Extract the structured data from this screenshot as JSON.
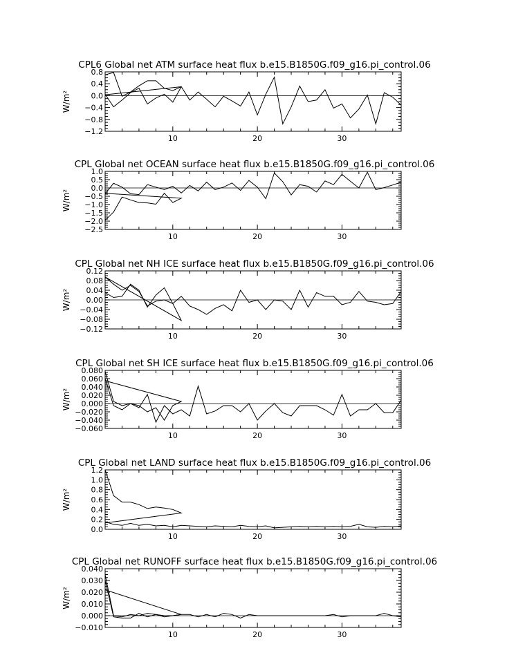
{
  "chart_data": [
    {
      "type": "line",
      "title": "CPL6 Global net ATM surface heat flux b.e15.B1850G.f09_g16.pi_control.06",
      "ylabel": "W/m²",
      "ylim": [
        -1.2,
        0.8
      ],
      "yticks": [
        0.8,
        0.4,
        0.0,
        -0.4,
        -0.8,
        -1.2
      ],
      "ytick_labels": [
        "0.8",
        "0.4",
        "0.0",
        "−0.4",
        "−0.8",
        "−1.2"
      ],
      "xlim": [
        2,
        37
      ],
      "xticks": [
        10,
        20,
        30
      ],
      "xtick_labels": [
        "10",
        "20",
        "30"
      ],
      "series": [
        {
          "x": [
            2,
            3,
            4,
            5,
            6,
            7,
            8,
            9,
            10,
            11,
            2
          ],
          "y": [
            0.7,
            0.78,
            -0.02,
            0.12,
            0.33,
            0.5,
            0.5,
            0.25,
            0.17,
            0.3,
            0.03
          ]
        },
        {
          "x": [
            2,
            3,
            4,
            5,
            6,
            7,
            8,
            9,
            10,
            11,
            12,
            13,
            14,
            15,
            16,
            17,
            18,
            19,
            20,
            21,
            22,
            23,
            24,
            25,
            26,
            27,
            28,
            29,
            30,
            31,
            32,
            33,
            34,
            35,
            36,
            37
          ],
          "y": [
            0.05,
            -0.38,
            -0.15,
            0.1,
            0.25,
            -0.28,
            -0.08,
            0.05,
            -0.22,
            0.3,
            -0.15,
            0.12,
            -0.12,
            -0.38,
            -0.02,
            -0.18,
            -0.35,
            0.12,
            -0.65,
            0.05,
            0.62,
            -0.95,
            -0.38,
            0.32,
            -0.2,
            -0.15,
            0.2,
            -0.42,
            -0.28,
            -0.75,
            -0.45,
            0.02,
            -0.95,
            0.1,
            -0.05,
            -0.32
          ]
        }
      ],
      "hline": 0
    },
    {
      "type": "line",
      "title": "CPL Global net OCEAN surface heat flux b.e15.B1850G.f09_g16.pi_control.06",
      "ylabel": "W/m²",
      "ylim": [
        -2.5,
        1.0
      ],
      "yticks": [
        1.0,
        0.5,
        0.0,
        -0.5,
        -1.0,
        -1.5,
        -2.0,
        -2.5
      ],
      "ytick_labels": [
        "1.0",
        "0.5",
        "0.0",
        "−0.5",
        "−1.0",
        "−1.5",
        "−2.0",
        "−2.5"
      ],
      "xlim": [
        2,
        37
      ],
      "xticks": [
        10,
        20,
        30
      ],
      "xtick_labels": [
        "10",
        "20",
        "30"
      ],
      "series": [
        {
          "x": [
            2,
            3,
            4,
            5,
            6,
            7,
            8,
            9,
            10,
            11,
            2
          ],
          "y": [
            -1.95,
            -1.45,
            -0.55,
            -0.72,
            -0.88,
            -0.9,
            -0.98,
            -0.32,
            -0.88,
            -0.62,
            -0.32
          ]
        },
        {
          "x": [
            2,
            3,
            4,
            5,
            6,
            7,
            8,
            9,
            10,
            11,
            12,
            13,
            14,
            15,
            16,
            17,
            18,
            19,
            20,
            21,
            22,
            23,
            24,
            25,
            26,
            27,
            28,
            29,
            30,
            31,
            32,
            33,
            34,
            35,
            36,
            37
          ],
          "y": [
            -0.35,
            0.28,
            0.05,
            -0.35,
            -0.4,
            0.2,
            0.05,
            -0.1,
            0.1,
            -0.3,
            0.15,
            -0.18,
            0.35,
            -0.1,
            0.05,
            0.3,
            -0.15,
            0.45,
            0.05,
            -0.65,
            0.9,
            0.38,
            -0.42,
            0.2,
            0.1,
            -0.25,
            0.42,
            0.2,
            0.82,
            0.4,
            0.0,
            0.95,
            -0.1,
            0.02,
            0.18,
            0.35
          ]
        }
      ],
      "hline": 0
    },
    {
      "type": "line",
      "title": "CPL Global net NH ICE surface heat flux b.e15.B1850G.f09_g16.pi_control.06",
      "ylabel": "W/m²",
      "ylim": [
        -0.12,
        0.12
      ],
      "yticks": [
        0.12,
        0.08,
        0.04,
        0.0,
        -0.04,
        -0.08,
        -0.12
      ],
      "ytick_labels": [
        "0.12",
        "0.08",
        "0.04",
        "0.00",
        "−0.04",
        "−0.08",
        "−0.12"
      ],
      "xlim": [
        2,
        37
      ],
      "xticks": [
        10,
        20,
        30
      ],
      "xtick_labels": [
        "10",
        "20",
        "30"
      ],
      "series": [
        {
          "x": [
            2,
            3,
            4,
            5,
            6,
            7,
            8,
            9,
            10,
            11,
            2
          ],
          "y": [
            0.095,
            0.065,
            0.04,
            0.06,
            0.035,
            -0.025,
            -0.005,
            0.0,
            -0.015,
            -0.085,
            0.095
          ]
        },
        {
          "x": [
            2,
            3,
            4,
            5,
            6,
            7,
            8,
            9,
            10,
            11,
            12,
            13,
            14,
            15,
            16,
            17,
            18,
            19,
            20,
            21,
            22,
            23,
            24,
            25,
            26,
            27,
            28,
            29,
            30,
            31,
            32,
            33,
            34,
            35,
            36,
            37
          ],
          "y": [
            0.03,
            0.01,
            0.015,
            0.065,
            0.04,
            -0.03,
            0.02,
            0.05,
            -0.015,
            0.015,
            -0.025,
            -0.04,
            -0.06,
            -0.035,
            -0.02,
            -0.045,
            0.04,
            -0.01,
            0.0,
            -0.04,
            0.0,
            -0.005,
            -0.04,
            0.04,
            -0.03,
            0.03,
            0.015,
            0.015,
            -0.02,
            -0.01,
            0.035,
            -0.005,
            -0.01,
            -0.02,
            -0.015,
            0.035
          ]
        }
      ],
      "hline": 0
    },
    {
      "type": "line",
      "title": "CPL Global net SH ICE surface heat flux b.e15.B1850G.f09_g16.pi_control.06",
      "ylabel": "W/m²",
      "ylim": [
        -0.06,
        0.08
      ],
      "yticks": [
        0.08,
        0.06,
        0.04,
        0.02,
        0.0,
        -0.02,
        -0.04,
        -0.06
      ],
      "ytick_labels": [
        "0.080",
        "0.060",
        "0.040",
        "0.020",
        "0.000",
        "−0.020",
        "−0.040",
        "−0.060"
      ],
      "xlim": [
        2,
        37
      ],
      "xticks": [
        10,
        20,
        30
      ],
      "xtick_labels": [
        "10",
        "20",
        "30"
      ],
      "series": [
        {
          "x": [
            2,
            3,
            4,
            5,
            6,
            7,
            8,
            9,
            10,
            11,
            2
          ],
          "y": [
            0.078,
            0.005,
            -0.005,
            0.0,
            -0.005,
            -0.02,
            -0.01,
            -0.04,
            -0.005,
            0.005,
            0.055
          ]
        },
        {
          "x": [
            2,
            3,
            4,
            5,
            6,
            7,
            8,
            9,
            10,
            11,
            12,
            13,
            14,
            15,
            16,
            17,
            18,
            19,
            20,
            21,
            22,
            23,
            24,
            25,
            26,
            27,
            28,
            29,
            30,
            31,
            32,
            33,
            34,
            35,
            36,
            37
          ],
          "y": [
            0.06,
            -0.005,
            -0.015,
            0.0,
            -0.01,
            0.022,
            -0.045,
            -0.005,
            -0.025,
            -0.015,
            -0.03,
            0.042,
            -0.025,
            -0.018,
            -0.005,
            -0.005,
            -0.02,
            0.0,
            -0.04,
            -0.018,
            0.0,
            -0.022,
            -0.03,
            -0.005,
            -0.005,
            -0.005,
            -0.015,
            -0.028,
            0.022,
            -0.03,
            -0.015,
            -0.015,
            0.0,
            -0.022,
            -0.022,
            0.008
          ]
        }
      ],
      "hline": 0
    },
    {
      "type": "line",
      "title": "CPL Global net LAND surface heat flux b.e15.B1850G.f09_g16.pi_control.06",
      "ylabel": "W/m²",
      "ylim": [
        0.0,
        1.2
      ],
      "yticks": [
        1.2,
        1.0,
        0.8,
        0.6,
        0.4,
        0.2,
        0.0
      ],
      "ytick_labels": [
        "1.2",
        "1.0",
        "0.8",
        "0.6",
        "0.4",
        "0.2",
        "0.0"
      ],
      "xlim": [
        2,
        37
      ],
      "xticks": [
        10,
        20,
        30
      ],
      "xtick_labels": [
        "10",
        "20",
        "30"
      ],
      "series": [
        {
          "x": [
            2,
            3,
            4,
            5,
            6,
            7,
            8,
            9,
            10,
            11,
            2
          ],
          "y": [
            1.2,
            0.68,
            0.55,
            0.55,
            0.5,
            0.42,
            0.45,
            0.43,
            0.4,
            0.33,
            0.13
          ]
        },
        {
          "x": [
            2,
            3,
            4,
            5,
            6,
            7,
            8,
            9,
            10,
            11,
            12,
            13,
            14,
            15,
            16,
            17,
            18,
            19,
            20,
            21,
            22,
            23,
            24,
            25,
            26,
            27,
            28,
            29,
            30,
            31,
            32,
            33,
            34,
            35,
            36,
            37
          ],
          "y": [
            0.15,
            0.1,
            0.08,
            0.12,
            0.08,
            0.1,
            0.07,
            0.08,
            0.05,
            0.08,
            0.07,
            0.06,
            0.05,
            0.07,
            0.06,
            0.05,
            0.08,
            0.06,
            0.05,
            0.07,
            0.03,
            0.04,
            0.05,
            0.06,
            0.05,
            0.06,
            0.05,
            0.06,
            0.05,
            0.06,
            0.1,
            0.05,
            0.04,
            0.06,
            0.05,
            0.07
          ]
        }
      ],
      "hline": null
    },
    {
      "type": "line",
      "title": "CPL Global net RUNOFF surface heat flux b.e15.B1850G.f09_g16.pi_control.06",
      "ylabel": "W/m²",
      "ylim": [
        -0.01,
        0.04
      ],
      "yticks": [
        0.04,
        0.03,
        0.02,
        0.01,
        0.0,
        -0.01
      ],
      "ytick_labels": [
        "0.040",
        "0.030",
        "0.020",
        "0.010",
        "0.000",
        "−0.010"
      ],
      "xlim": [
        2,
        37
      ],
      "xticks": [
        10,
        20,
        30
      ],
      "xtick_labels": [
        "10",
        "20",
        "30"
      ],
      "series": [
        {
          "x": [
            2,
            3,
            4,
            5,
            6,
            7,
            8,
            9,
            10,
            11,
            2
          ],
          "y": [
            0.035,
            0.0,
            -0.001,
            0.001,
            0.0,
            0.002,
            0.001,
            -0.001,
            0.0,
            0.001,
            0.022
          ]
        },
        {
          "x": [
            2,
            3,
            4,
            5,
            6,
            7,
            8,
            9,
            10,
            11,
            12,
            13,
            14,
            15,
            16,
            17,
            18,
            19,
            20,
            21,
            22,
            23,
            24,
            25,
            26,
            27,
            28,
            29,
            30,
            31,
            32,
            33,
            34,
            35,
            36,
            37
          ],
          "y": [
            0.03,
            -0.001,
            -0.002,
            -0.002,
            0.002,
            -0.001,
            0.001,
            0.0,
            0.0,
            0.001,
            0.001,
            -0.001,
            0.001,
            -0.001,
            0.002,
            0.001,
            -0.002,
            0.001,
            0.0,
            0.0,
            0.0,
            0.0,
            0.0,
            0.0,
            0.0,
            0.0,
            0.0,
            0.001,
            -0.001,
            0.0,
            0.0,
            0.0,
            0.0,
            0.002,
            0.0,
            -0.001
          ]
        }
      ],
      "hline": 0
    }
  ]
}
